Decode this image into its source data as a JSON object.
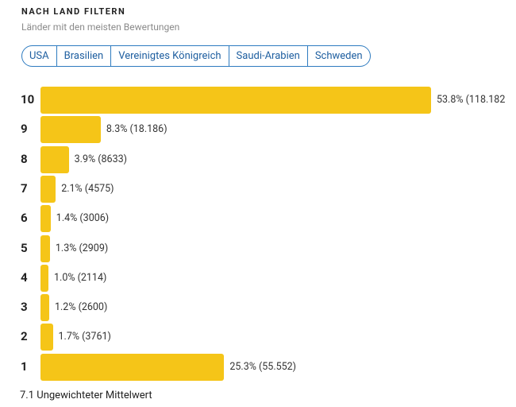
{
  "header": {
    "title": "NACH LAND FILTERN",
    "subtitle": "Länder mit den meisten Bewertungen"
  },
  "country_tabs": [
    "USA",
    "Brasilien",
    "Vereinigtes Königreich",
    "Saudi-Arabien",
    "Schweden"
  ],
  "chart_data": {
    "type": "bar",
    "orientation": "horizontal",
    "categories": [
      "10",
      "9",
      "8",
      "7",
      "6",
      "5",
      "4",
      "3",
      "2",
      "1"
    ],
    "values": [
      53.8,
      8.3,
      3.9,
      2.1,
      1.4,
      1.3,
      1.0,
      1.2,
      1.7,
      25.3
    ],
    "labels": [
      "53.8% (118.182",
      "8.3% (18.186)",
      "3.9% (8633)",
      "2.1% (4575)",
      "1.4% (3006)",
      "1.3% (2909)",
      "1.0% (2114)",
      "1.2% (2600)",
      "1.7% (3761)",
      "25.3% (55.552)"
    ],
    "bar_color": "#f5c518"
  },
  "footer": {
    "summary": "7.1 Ungewichteter Mittelwert"
  }
}
